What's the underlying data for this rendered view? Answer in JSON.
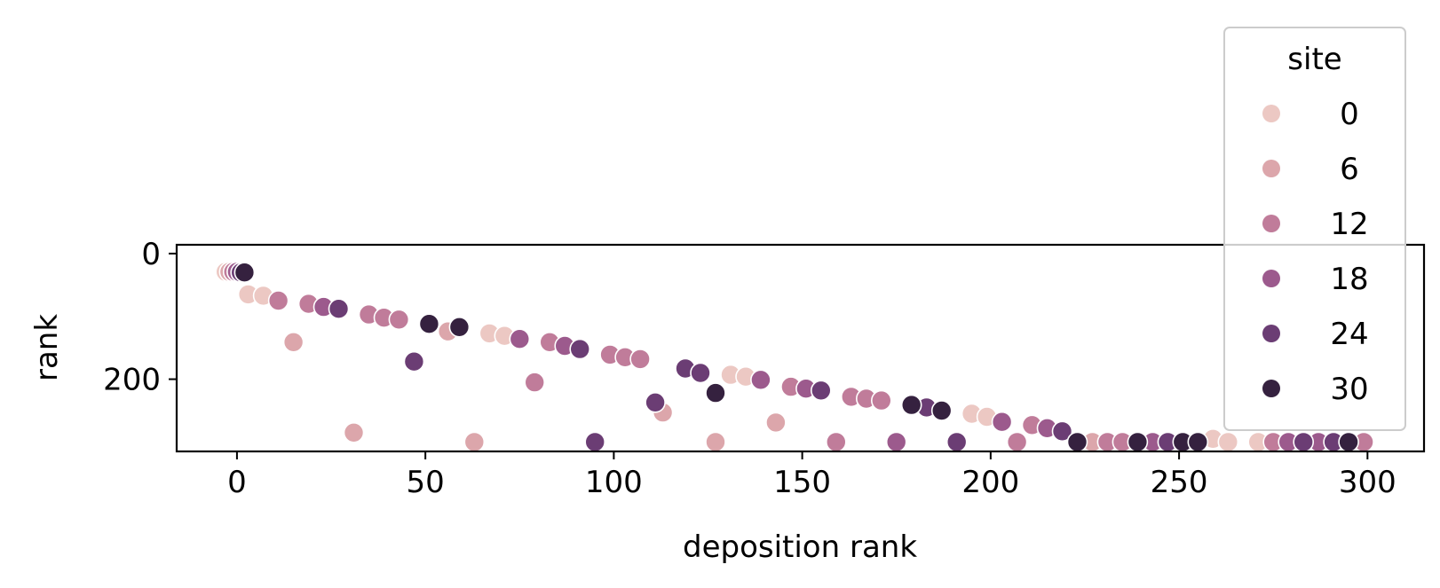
{
  "chart_data": {
    "type": "scatter",
    "xlabel": "deposition rank",
    "ylabel": "rank",
    "xlim": [
      -16,
      315
    ],
    "ylim": [
      315,
      -14
    ],
    "y_inverted": true,
    "x_ticks": [
      0,
      50,
      100,
      150,
      200,
      250,
      300
    ],
    "y_ticks": [
      0,
      200
    ],
    "grid": false,
    "legend": {
      "title": "site",
      "placement": "top-right",
      "entries": [
        {
          "label": "0",
          "color": "#ecc8c3"
        },
        {
          "label": "6",
          "color": "#dca6ab"
        },
        {
          "label": "12",
          "color": "#c07c9a"
        },
        {
          "label": "18",
          "color": "#9c5a8d"
        },
        {
          "label": "24",
          "color": "#6b3d74"
        },
        {
          "label": "30",
          "color": "#35213f"
        }
      ]
    },
    "series": [
      {
        "site": 0,
        "color": "#ecc8c3",
        "points": [
          [
            -3,
            29
          ],
          [
            3,
            65
          ],
          [
            7,
            67
          ],
          [
            67,
            127
          ],
          [
            71,
            131
          ],
          [
            131,
            193
          ],
          [
            135,
            196
          ],
          [
            195,
            255
          ],
          [
            199,
            260
          ],
          [
            259,
            295
          ],
          [
            263,
            300
          ],
          [
            271,
            300
          ]
        ]
      },
      {
        "site": 6,
        "color": "#dca6ab",
        "points": [
          [
            -2,
            29
          ],
          [
            15,
            141
          ],
          [
            31,
            285
          ],
          [
            56,
            124
          ],
          [
            63,
            300
          ],
          [
            113,
            253
          ],
          [
            127,
            300
          ],
          [
            143,
            269
          ],
          [
            227,
            300
          ]
        ]
      },
      {
        "site": 12,
        "color": "#c07c9a",
        "points": [
          [
            -1,
            29
          ],
          [
            11,
            75
          ],
          [
            19,
            80
          ],
          [
            35,
            97
          ],
          [
            39,
            102
          ],
          [
            43,
            105
          ],
          [
            79,
            205
          ],
          [
            83,
            141
          ],
          [
            99,
            161
          ],
          [
            103,
            165
          ],
          [
            107,
            168
          ],
          [
            147,
            212
          ],
          [
            159,
            300
          ],
          [
            163,
            228
          ],
          [
            167,
            231
          ],
          [
            171,
            234
          ],
          [
            207,
            300
          ],
          [
            211,
            273
          ],
          [
            231,
            300
          ],
          [
            235,
            300
          ],
          [
            275,
            300
          ],
          [
            299,
            300
          ]
        ]
      },
      {
        "site": 18,
        "color": "#9c5a8d",
        "points": [
          [
            0,
            29
          ],
          [
            23,
            85
          ],
          [
            75,
            136
          ],
          [
            87,
            147
          ],
          [
            139,
            201
          ],
          [
            151,
            215
          ],
          [
            175,
            300
          ],
          [
            203,
            268
          ],
          [
            215,
            278
          ],
          [
            243,
            300
          ],
          [
            279,
            300
          ],
          [
            287,
            300
          ]
        ]
      },
      {
        "site": 24,
        "color": "#6b3d74",
        "points": [
          [
            1,
            30
          ],
          [
            27,
            88
          ],
          [
            47,
            172
          ],
          [
            91,
            152
          ],
          [
            95,
            300
          ],
          [
            111,
            237
          ],
          [
            119,
            183
          ],
          [
            123,
            190
          ],
          [
            155,
            218
          ],
          [
            183,
            245
          ],
          [
            191,
            300
          ],
          [
            219,
            283
          ],
          [
            247,
            300
          ],
          [
            283,
            300
          ],
          [
            291,
            300
          ]
        ]
      },
      {
        "site": 30,
        "color": "#35213f",
        "points": [
          [
            2,
            30
          ],
          [
            51,
            112
          ],
          [
            59,
            117
          ],
          [
            127,
            222
          ],
          [
            179,
            241
          ],
          [
            187,
            250
          ],
          [
            223,
            300
          ],
          [
            239,
            300
          ],
          [
            251,
            300
          ],
          [
            255,
            300
          ],
          [
            295,
            300
          ]
        ]
      }
    ]
  }
}
